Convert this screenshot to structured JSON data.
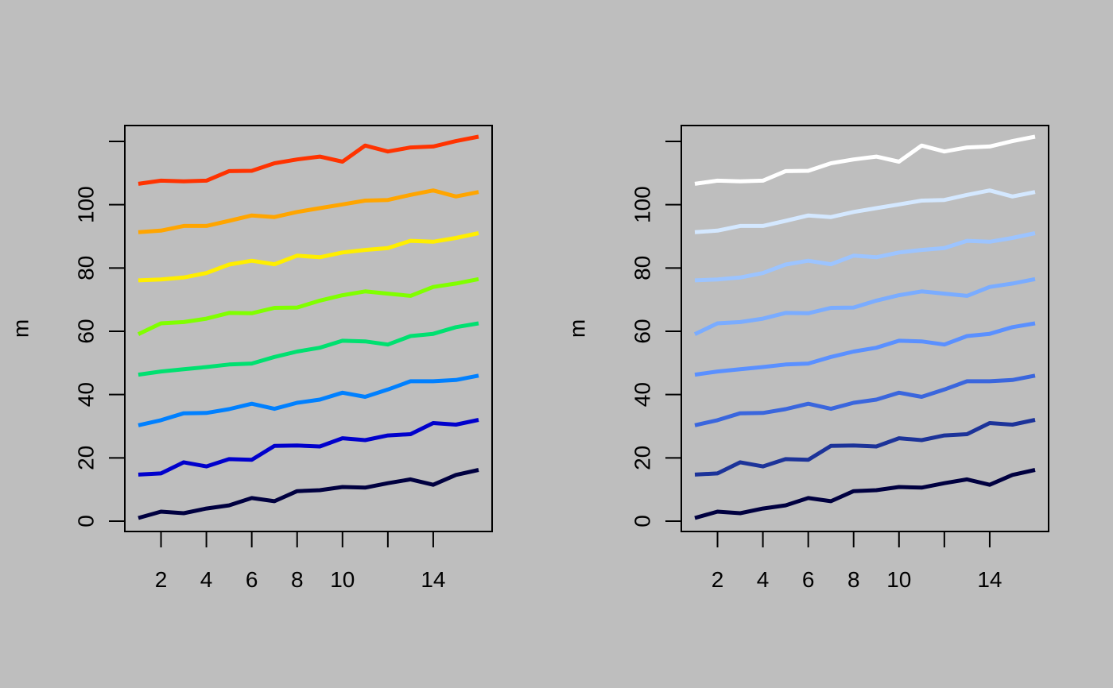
{
  "background": "#bebebe",
  "chart_data": [
    {
      "type": "line",
      "palette": "rainbow",
      "xlabel": "",
      "ylabel": "m",
      "xlim": [
        1,
        16
      ],
      "ylim": [
        0,
        120
      ],
      "xticks": [
        2,
        4,
        6,
        8,
        10,
        12,
        14
      ],
      "xtick_labels": [
        "2",
        "4",
        "6",
        "8",
        "10",
        "",
        "14"
      ],
      "yticks": [
        0,
        20,
        40,
        60,
        80,
        100,
        120
      ],
      "ytick_labels": [
        "0",
        "20",
        "40",
        "60",
        "80",
        "100",
        ""
      ],
      "x": [
        1,
        2,
        3,
        4,
        5,
        6,
        7,
        8,
        9,
        10,
        11,
        12,
        13,
        14,
        15,
        16
      ],
      "series": [
        {
          "color": "#000040",
          "values": [
            1,
            3,
            2.5,
            4,
            5,
            7.3,
            6.3,
            9.5,
            9.8,
            10.8,
            10.6,
            12,
            13.2,
            11.5,
            14.6,
            16.2
          ]
        },
        {
          "color": "#0000cc",
          "values": [
            14.7,
            15.1,
            18.6,
            17.3,
            19.6,
            19.4,
            23.8,
            23.9,
            23.6,
            26.2,
            25.6,
            27.1,
            27.5,
            31,
            30.5,
            32
          ]
        },
        {
          "color": "#0080ff",
          "values": [
            30.3,
            31.9,
            34.1,
            34.2,
            35.4,
            37.1,
            35.5,
            37.4,
            38.4,
            40.6,
            39.3,
            41.6,
            44.2,
            44.2,
            44.6,
            46
          ]
        },
        {
          "color": "#00e070",
          "values": [
            46.3,
            47.3,
            48,
            48.7,
            49.5,
            49.8,
            51.9,
            53.6,
            54.8,
            57,
            56.8,
            55.8,
            58.5,
            59.2,
            61.3,
            62.5
          ]
        },
        {
          "color": "#80ff00",
          "values": [
            59.1,
            62.5,
            62.9,
            64,
            65.8,
            65.7,
            67.4,
            67.5,
            69.7,
            71.4,
            72.6,
            71.9,
            71.2,
            74,
            75.1,
            76.5
          ]
        },
        {
          "color": "#ffee00",
          "values": [
            76.1,
            76.4,
            77,
            78.4,
            81.1,
            82.3,
            81.2,
            83.9,
            83.4,
            84.9,
            85.7,
            86.3,
            88.6,
            88.3,
            89.5,
            91
          ]
        },
        {
          "color": "#ffa500",
          "values": [
            91.3,
            91.8,
            93.3,
            93.3,
            94.9,
            96.6,
            96.1,
            97.7,
            98.9,
            100.1,
            101.3,
            101.5,
            103.1,
            104.5,
            102.6,
            104
          ]
        },
        {
          "color": "#ff3300",
          "values": [
            106.6,
            107.6,
            107.4,
            107.6,
            110.6,
            110.7,
            113.1,
            114.3,
            115.2,
            113.6,
            118.7,
            116.8,
            118.1,
            118.4,
            120.1,
            121.5
          ]
        }
      ]
    },
    {
      "type": "line",
      "palette": "blues",
      "xlabel": "",
      "ylabel": "m",
      "xlim": [
        1,
        16
      ],
      "ylim": [
        0,
        120
      ],
      "xticks": [
        2,
        4,
        6,
        8,
        10,
        12,
        14
      ],
      "xtick_labels": [
        "2",
        "4",
        "6",
        "8",
        "10",
        "",
        "14"
      ],
      "yticks": [
        0,
        20,
        40,
        60,
        80,
        100,
        120
      ],
      "ytick_labels": [
        "0",
        "20",
        "40",
        "60",
        "80",
        "100",
        ""
      ],
      "x": [
        1,
        2,
        3,
        4,
        5,
        6,
        7,
        8,
        9,
        10,
        11,
        12,
        13,
        14,
        15,
        16
      ],
      "series": [
        {
          "color": "#000040",
          "values": [
            1,
            3,
            2.5,
            4,
            5,
            7.3,
            6.3,
            9.5,
            9.8,
            10.8,
            10.6,
            12,
            13.2,
            11.5,
            14.6,
            16.2
          ]
        },
        {
          "color": "#1c3399",
          "values": [
            14.7,
            15.1,
            18.6,
            17.3,
            19.6,
            19.4,
            23.8,
            23.9,
            23.6,
            26.2,
            25.6,
            27.1,
            27.5,
            31,
            30.5,
            32
          ]
        },
        {
          "color": "#3a66dd",
          "values": [
            30.3,
            31.9,
            34.1,
            34.2,
            35.4,
            37.1,
            35.5,
            37.4,
            38.4,
            40.6,
            39.3,
            41.6,
            44.2,
            44.2,
            44.6,
            46
          ]
        },
        {
          "color": "#5a90ff",
          "values": [
            46.3,
            47.3,
            48,
            48.7,
            49.5,
            49.8,
            51.9,
            53.6,
            54.8,
            57,
            56.8,
            55.8,
            58.5,
            59.2,
            61.3,
            62.5
          ]
        },
        {
          "color": "#7aacff",
          "values": [
            59.1,
            62.5,
            62.9,
            64,
            65.8,
            65.7,
            67.4,
            67.5,
            69.7,
            71.4,
            72.6,
            71.9,
            71.2,
            74,
            75.1,
            76.5
          ]
        },
        {
          "color": "#9cc4ff",
          "values": [
            76.1,
            76.4,
            77,
            78.4,
            81.1,
            82.3,
            81.2,
            83.9,
            83.4,
            84.9,
            85.7,
            86.3,
            88.6,
            88.3,
            89.5,
            91
          ]
        },
        {
          "color": "#d4e8ff",
          "values": [
            91.3,
            91.8,
            93.3,
            93.3,
            94.9,
            96.6,
            96.1,
            97.7,
            98.9,
            100.1,
            101.3,
            101.5,
            103.1,
            104.5,
            102.6,
            104
          ]
        },
        {
          "color": "#ffffff",
          "values": [
            106.6,
            107.6,
            107.4,
            107.6,
            110.6,
            110.7,
            113.1,
            114.3,
            115.2,
            113.6,
            118.7,
            116.8,
            118.1,
            118.4,
            120.1,
            121.5
          ]
        }
      ]
    }
  ]
}
